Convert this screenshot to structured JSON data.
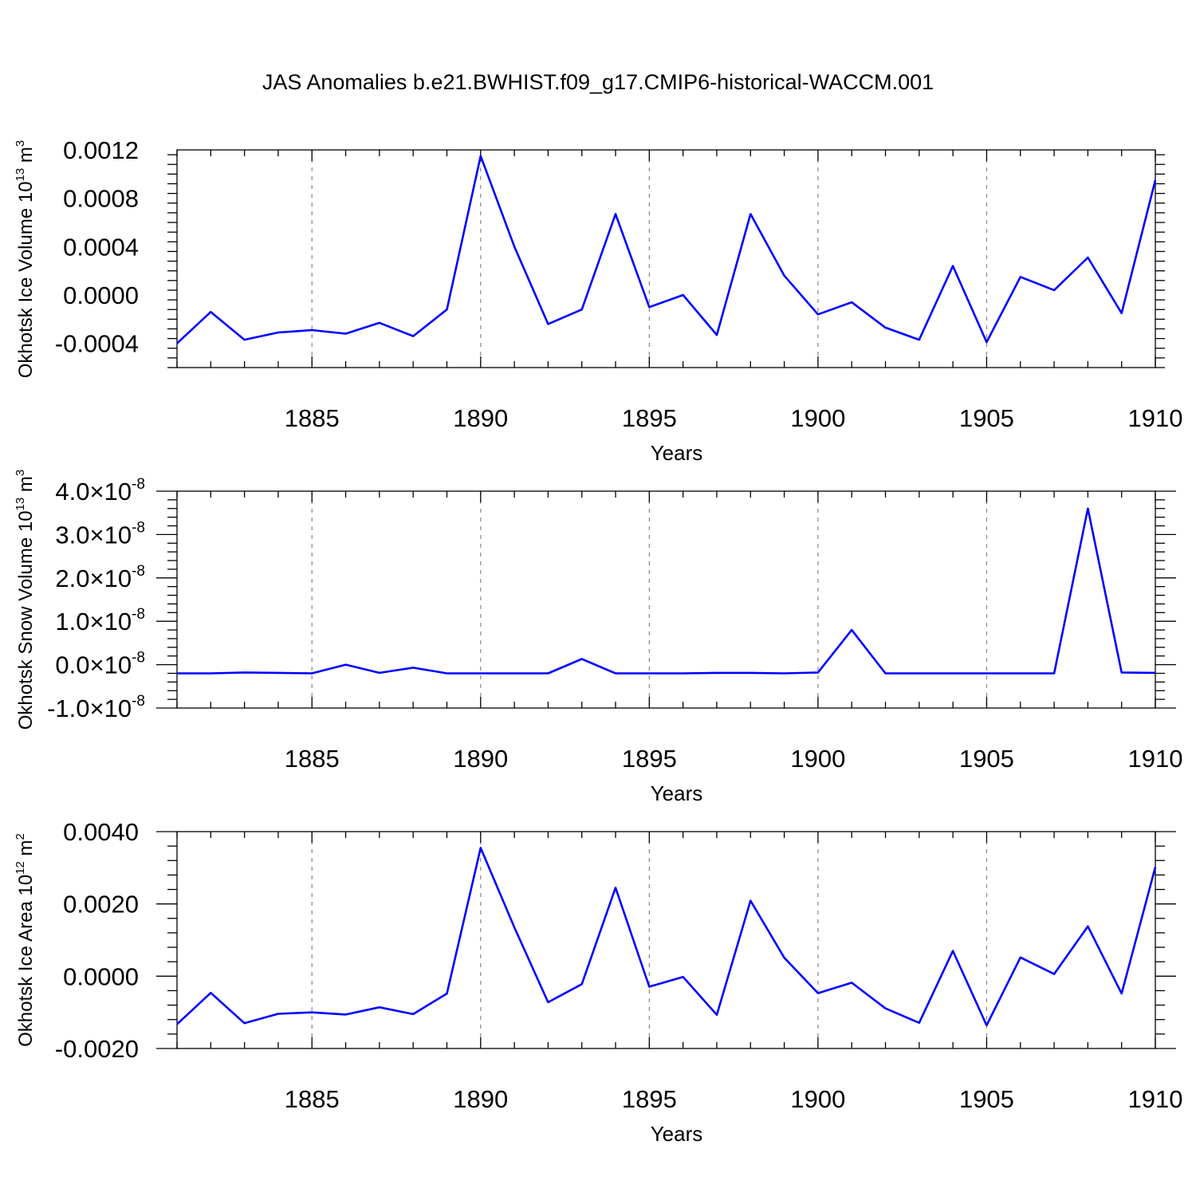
{
  "title": "JAS Anomalies b.e21.BWHIST.f09_g17.CMIP6-historical-WACCM.001",
  "colors": {
    "line": "#0000ff",
    "grid": "#888888",
    "axis": "#000000"
  },
  "chart_data": [
    {
      "type": "line",
      "xlabel": "Years",
      "ylabel": {
        "text": "Okhotsk Ice Volume 10",
        "exp": "13",
        "unit": " m",
        "unit_exp": "3"
      },
      "xlim": [
        1881,
        1910
      ],
      "ylim": [
        -0.0006,
        0.0012
      ],
      "x_ticks": [
        1885,
        1890,
        1895,
        1900,
        1905,
        1910
      ],
      "y_ticks": [
        {
          "value": -0.0004,
          "label": "-0.0004"
        },
        {
          "value": 0.0,
          "label": "0.0000"
        },
        {
          "value": 0.0004,
          "label": "0.0004"
        },
        {
          "value": 0.0008,
          "label": "0.0008"
        },
        {
          "value": 0.0012,
          "label": "0.0012"
        }
      ],
      "grid": "vertical dashed at labeled years",
      "x": [
        1881,
        1882,
        1883,
        1884,
        1885,
        1886,
        1887,
        1888,
        1889,
        1890,
        1891,
        1892,
        1893,
        1894,
        1895,
        1896,
        1897,
        1898,
        1899,
        1900,
        1901,
        1902,
        1903,
        1904,
        1905,
        1906,
        1907,
        1908,
        1909,
        1910
      ],
      "values": [
        -0.0004,
        -0.00014,
        -0.00037,
        -0.00031,
        -0.00029,
        -0.00032,
        -0.00023,
        -0.00034,
        -0.00012,
        0.00115,
        0.0004,
        -0.00024,
        -0.00012,
        0.00067,
        -0.0001,
        0.0,
        -0.00033,
        0.00067,
        0.00016,
        -0.00016,
        -6e-05,
        -0.00027,
        -0.00037,
        0.00024,
        -0.00039,
        0.00015,
        4e-05,
        0.00031,
        -0.00015,
        0.00095
      ]
    },
    {
      "type": "line",
      "xlabel": "Years",
      "ylabel": {
        "text": "Okhotsk Snow Volume 10",
        "exp": "13",
        "unit": " m",
        "unit_exp": "3"
      },
      "xlim": [
        1881,
        1910
      ],
      "ylim": [
        -1e-08,
        4e-08
      ],
      "x_ticks": [
        1885,
        1890,
        1895,
        1900,
        1905,
        1910
      ],
      "y_ticks": [
        {
          "value": -1e-08,
          "mant": "-1.0",
          "exp": "-8"
        },
        {
          "value": 0.0,
          "mant": "0.0",
          "exp": "-8"
        },
        {
          "value": 1e-08,
          "mant": "1.0",
          "exp": "-8"
        },
        {
          "value": 2e-08,
          "mant": "2.0",
          "exp": "-8"
        },
        {
          "value": 3e-08,
          "mant": "3.0",
          "exp": "-8"
        },
        {
          "value": 4e-08,
          "mant": "4.0",
          "exp": "-8"
        }
      ],
      "times_symbol": "×10",
      "grid": "vertical dashed at labeled years",
      "x": [
        1881,
        1882,
        1883,
        1884,
        1885,
        1886,
        1887,
        1888,
        1889,
        1890,
        1891,
        1892,
        1893,
        1894,
        1895,
        1896,
        1897,
        1898,
        1899,
        1900,
        1901,
        1902,
        1903,
        1904,
        1905,
        1906,
        1907,
        1908,
        1909,
        1910
      ],
      "values": [
        -2e-09,
        -2e-09,
        -1.8e-09,
        -1.9e-09,
        -2e-09,
        0.0,
        -1.9e-09,
        -7e-10,
        -2e-09,
        -2e-09,
        -2e-09,
        -2e-09,
        1.3e-09,
        -2e-09,
        -2e-09,
        -2e-09,
        -1.9e-09,
        -1.9e-09,
        -2e-09,
        -1.8e-09,
        8e-09,
        -2e-09,
        -2e-09,
        -2e-09,
        -2e-09,
        -2e-09,
        -2e-09,
        3.6e-08,
        -1.8e-09,
        -1.9e-09
      ]
    },
    {
      "type": "line",
      "xlabel": "Years",
      "ylabel": {
        "text": "Okhotsk Ice Area 10",
        "exp": "12",
        "unit": " m",
        "unit_exp": "2"
      },
      "xlim": [
        1881,
        1910
      ],
      "ylim": [
        -0.002,
        0.004
      ],
      "x_ticks": [
        1885,
        1890,
        1895,
        1900,
        1905,
        1910
      ],
      "y_ticks": [
        {
          "value": -0.002,
          "label": "-0.0020"
        },
        {
          "value": 0.0,
          "label": "0.0000"
        },
        {
          "value": 0.002,
          "label": "0.0020"
        },
        {
          "value": 0.004,
          "label": "0.0040"
        }
      ],
      "grid": "vertical dashed at labeled years",
      "x": [
        1881,
        1882,
        1883,
        1884,
        1885,
        1886,
        1887,
        1888,
        1889,
        1890,
        1891,
        1892,
        1893,
        1894,
        1895,
        1896,
        1897,
        1898,
        1899,
        1900,
        1901,
        1902,
        1903,
        1904,
        1905,
        1906,
        1907,
        1908,
        1909,
        1910
      ],
      "values": [
        -0.00133,
        -0.00046,
        -0.0013,
        -0.00104,
        -0.001,
        -0.00106,
        -0.00086,
        -0.00105,
        -0.00048,
        0.00355,
        0.00135,
        -0.00072,
        -0.00022,
        0.00245,
        -0.00029,
        -2e-05,
        -0.00107,
        0.00209,
        0.00051,
        -0.00047,
        -0.00018,
        -0.00089,
        -0.00129,
        0.0007,
        -0.00136,
        0.00052,
        6e-05,
        0.00138,
        -0.00048,
        0.00302
      ]
    }
  ]
}
